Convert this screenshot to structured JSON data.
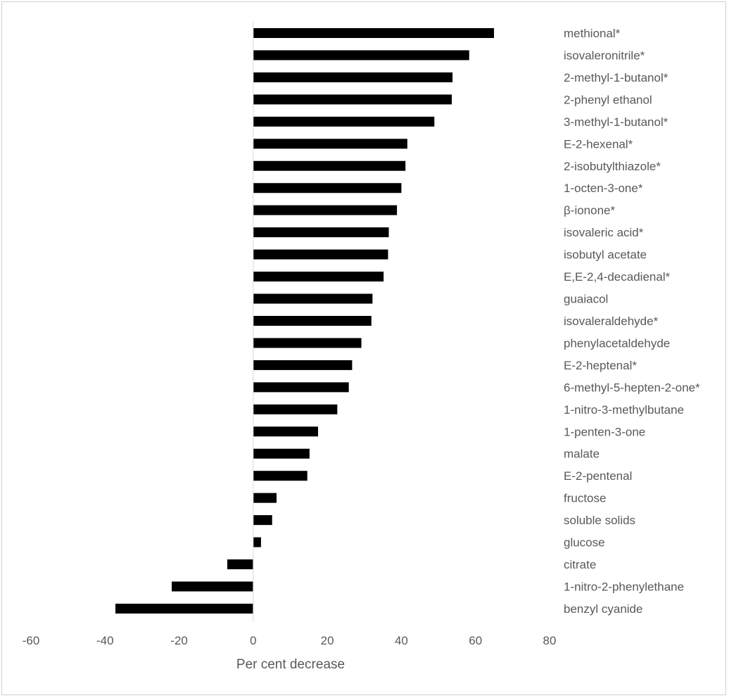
{
  "chart_data": {
    "type": "bar",
    "orientation": "horizontal",
    "title": "",
    "xlabel": "Per cent decrease",
    "ylabel": "",
    "xlim": [
      -60,
      80
    ],
    "xticks": [
      -60,
      -40,
      -20,
      0,
      20,
      40,
      60,
      80
    ],
    "grid": false,
    "legend": "none",
    "bar_color": "#000000",
    "categories": [
      "methional*",
      "isovaleronitrile*",
      "2-methyl-1-butanol*",
      "2-phenyl ethanol",
      "3-methyl-1-butanol*",
      "E-2-hexenal*",
      "2-isobutylthiazole*",
      "1-octen-3-one*",
      "β-ionone*",
      "isovaleric acid*",
      "isobutyl acetate",
      "E,E-2,4-decadienal*",
      "guaiacol",
      "isovaleraldehyde*",
      "phenylacetaldehyde",
      "E-2-heptenal*",
      "6-methyl-5-hepten-2-one*",
      "1-nitro-3-methylbutane",
      "1-penten-3-one",
      "malate",
      "E-2-pentenal",
      "fructose",
      "soluble solids",
      "glucose",
      "citrate",
      "1-nitro-2-phenylethane",
      "benzyl cyanide"
    ],
    "values": [
      65,
      58.3,
      53.8,
      53.6,
      48.9,
      41.6,
      41.1,
      40,
      38.8,
      36.6,
      36.4,
      35.2,
      32.2,
      31.9,
      29.2,
      26.7,
      25.8,
      22.7,
      17.5,
      15.2,
      14.6,
      6.3,
      5.1,
      2.1,
      -7,
      -22,
      -37.2
    ]
  }
}
